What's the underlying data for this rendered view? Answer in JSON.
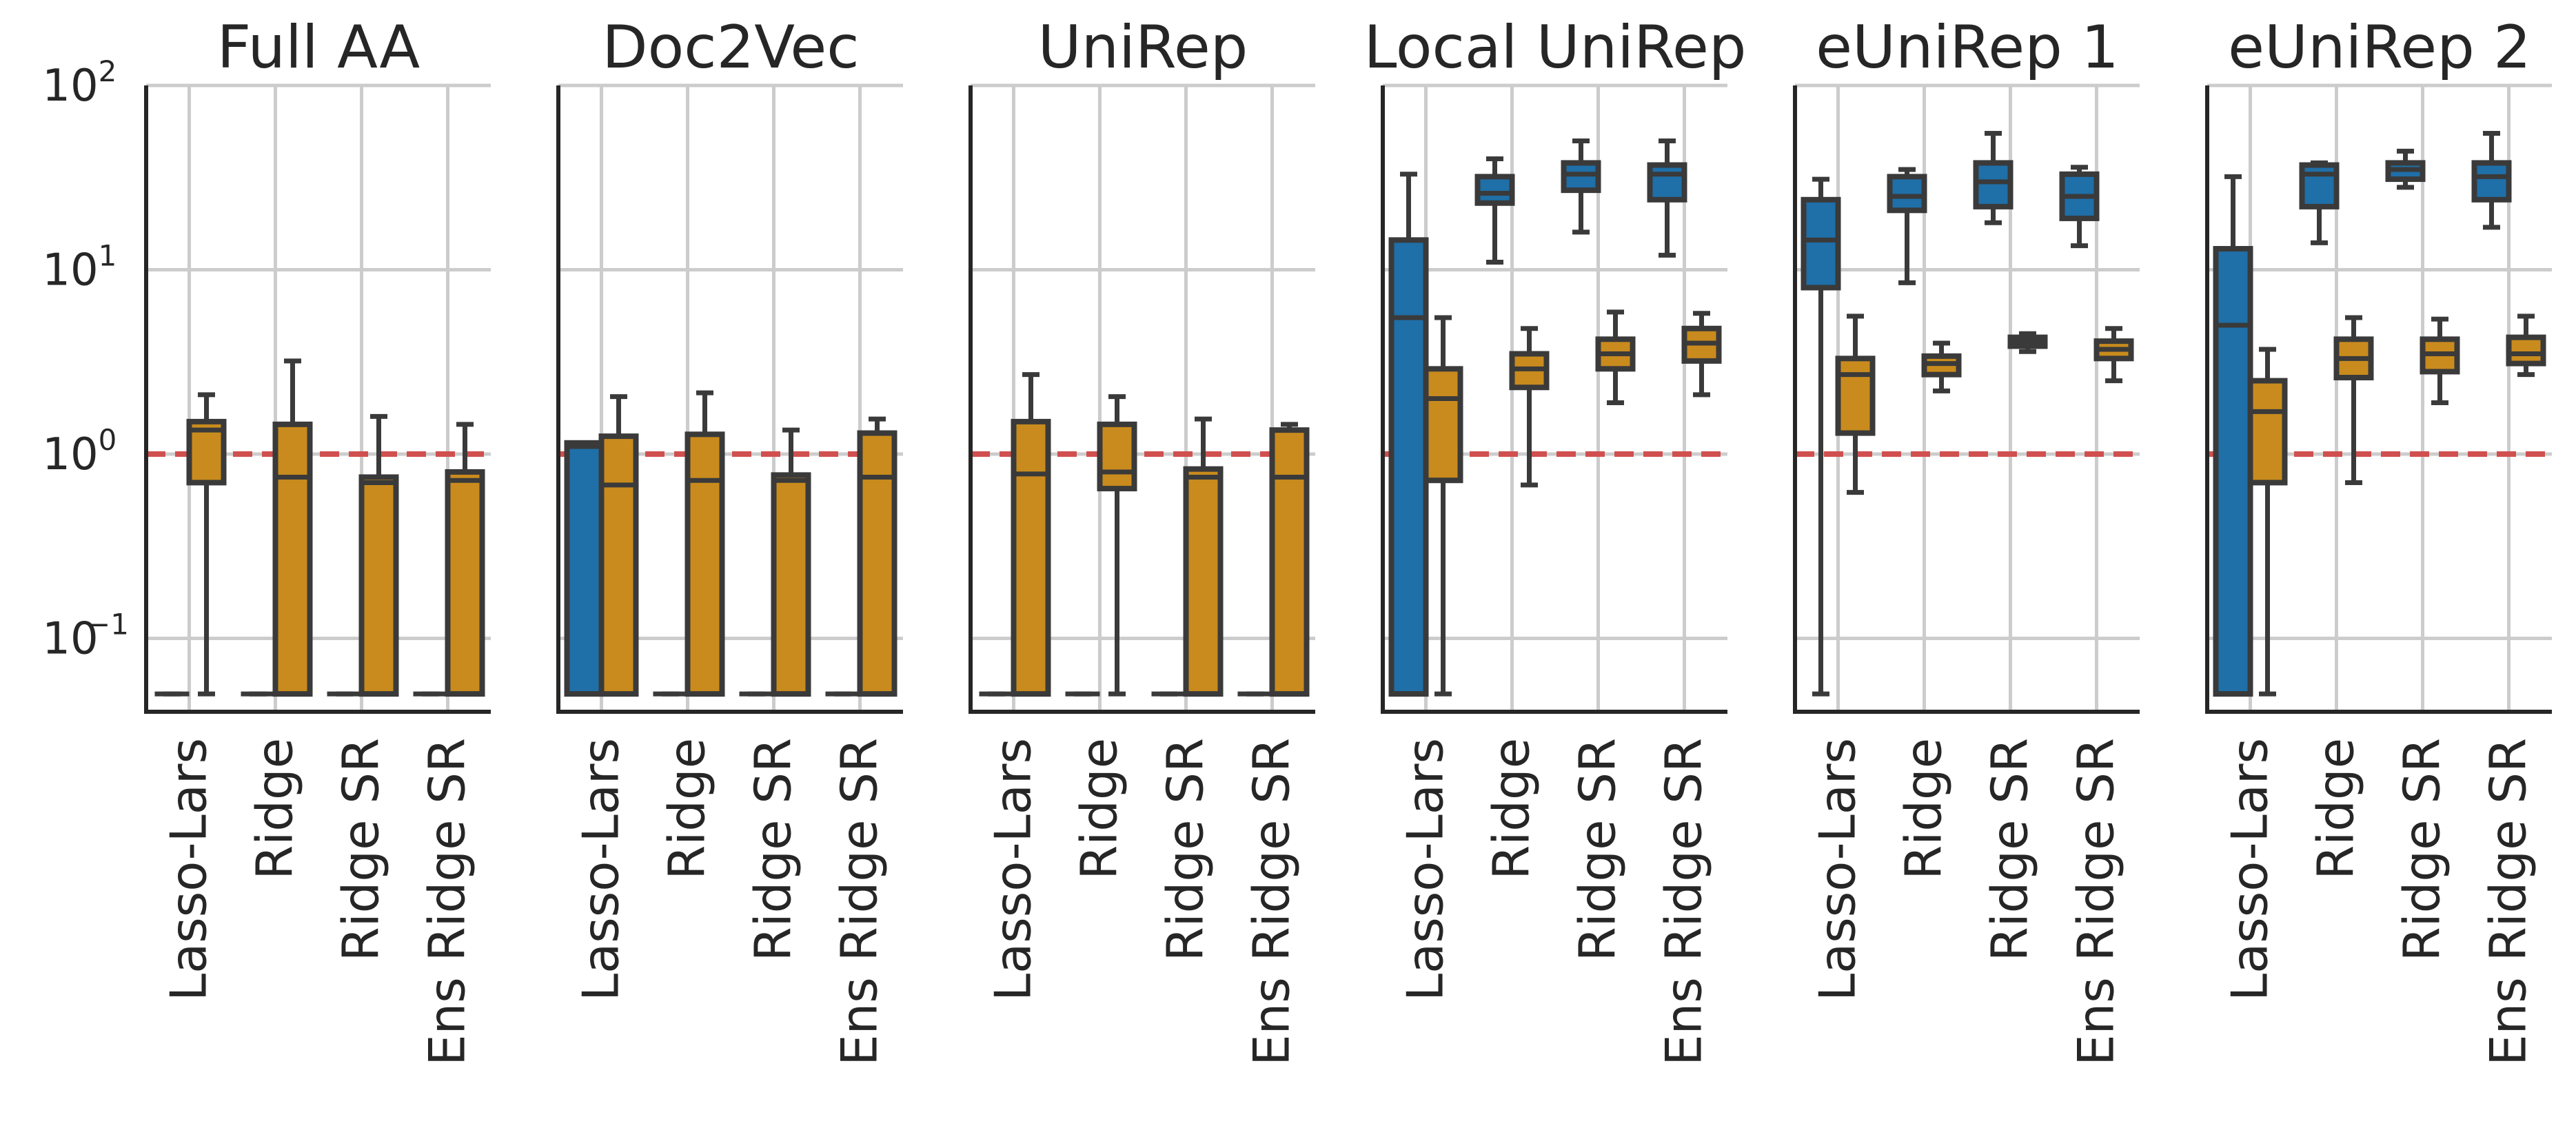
{
  "colors": {
    "set_a": "#1f6fa8",
    "set_b": "#c98b1d",
    "reference": "#d0504f"
  },
  "chart_data": {
    "type": "box",
    "yscale": "log",
    "ylim": [
      0.04,
      100
    ],
    "yticks": [
      0.1,
      1,
      10,
      100
    ],
    "ytick_labels": [
      {
        "base": "10",
        "exp": "−1"
      },
      {
        "base": "10",
        "exp": "0"
      },
      {
        "base": "10",
        "exp": "1"
      },
      {
        "base": "10",
        "exp": "2"
      }
    ],
    "reference_line": 1,
    "grid": true,
    "categories": [
      "Lasso-Lars",
      "Ridge",
      "Ridge SR",
      "Ens Ridge SR"
    ],
    "panels": [
      {
        "title": "Full AA",
        "boxes": [
          {
            "category": "Lasso-Lars",
            "series": "a",
            "min": 0.05,
            "q1": 0.05,
            "median": 0.05,
            "q3": 0.05,
            "max": 0.05
          },
          {
            "category": "Lasso-Lars",
            "series": "b",
            "min": 0.05,
            "q1": 0.7,
            "median": 1.35,
            "q3": 1.5,
            "max": 2.1
          },
          {
            "category": "Ridge",
            "series": "a",
            "min": 0.05,
            "q1": 0.05,
            "median": 0.05,
            "q3": 0.05,
            "max": 0.05
          },
          {
            "category": "Ridge",
            "series": "b",
            "min": 0.05,
            "q1": 0.05,
            "median": 0.75,
            "q3": 1.45,
            "max": 3.2
          },
          {
            "category": "Ridge SR",
            "series": "a",
            "min": 0.05,
            "q1": 0.05,
            "median": 0.05,
            "q3": 0.05,
            "max": 0.05
          },
          {
            "category": "Ridge SR",
            "series": "b",
            "min": 0.05,
            "q1": 0.05,
            "median": 0.7,
            "q3": 0.75,
            "max": 1.6
          },
          {
            "category": "Ens Ridge SR",
            "series": "a",
            "min": 0.05,
            "q1": 0.05,
            "median": 0.05,
            "q3": 0.05,
            "max": 0.05
          },
          {
            "category": "Ens Ridge SR",
            "series": "b",
            "min": 0.05,
            "q1": 0.05,
            "median": 0.72,
            "q3": 0.8,
            "max": 1.45
          }
        ]
      },
      {
        "title": "Doc2Vec",
        "boxes": [
          {
            "category": "Lasso-Lars",
            "series": "a",
            "min": 0.05,
            "q1": 0.05,
            "median": 1.1,
            "q3": 1.15,
            "max": 1.15
          },
          {
            "category": "Lasso-Lars",
            "series": "b",
            "min": 0.05,
            "q1": 0.05,
            "median": 0.68,
            "q3": 1.25,
            "max": 2.05
          },
          {
            "category": "Ridge",
            "series": "a",
            "min": 0.05,
            "q1": 0.05,
            "median": 0.05,
            "q3": 0.05,
            "max": 0.05
          },
          {
            "category": "Ridge",
            "series": "b",
            "min": 0.05,
            "q1": 0.05,
            "median": 0.72,
            "q3": 1.28,
            "max": 2.15
          },
          {
            "category": "Ridge SR",
            "series": "a",
            "min": 0.05,
            "q1": 0.05,
            "median": 0.05,
            "q3": 0.05,
            "max": 0.05
          },
          {
            "category": "Ridge SR",
            "series": "b",
            "min": 0.05,
            "q1": 0.05,
            "median": 0.72,
            "q3": 0.77,
            "max": 1.35
          },
          {
            "category": "Ens Ridge SR",
            "series": "a",
            "min": 0.05,
            "q1": 0.05,
            "median": 0.05,
            "q3": 0.05,
            "max": 0.05
          },
          {
            "category": "Ens Ridge SR",
            "series": "b",
            "min": 0.05,
            "q1": 0.05,
            "median": 0.75,
            "q3": 1.3,
            "max": 1.55
          }
        ]
      },
      {
        "title": "UniRep",
        "boxes": [
          {
            "category": "Lasso-Lars",
            "series": "a",
            "min": 0.05,
            "q1": 0.05,
            "median": 0.05,
            "q3": 0.05,
            "max": 0.05
          },
          {
            "category": "Lasso-Lars",
            "series": "b",
            "min": 0.05,
            "q1": 0.05,
            "median": 0.78,
            "q3": 1.5,
            "max": 2.7
          },
          {
            "category": "Ridge",
            "series": "a",
            "min": 0.05,
            "q1": 0.05,
            "median": 0.05,
            "q3": 0.05,
            "max": 0.05
          },
          {
            "category": "Ridge",
            "series": "b",
            "min": 0.05,
            "q1": 0.65,
            "median": 0.8,
            "q3": 1.45,
            "max": 2.05
          },
          {
            "category": "Ridge SR",
            "series": "a",
            "min": 0.05,
            "q1": 0.05,
            "median": 0.05,
            "q3": 0.05,
            "max": 0.05
          },
          {
            "category": "Ridge SR",
            "series": "b",
            "min": 0.05,
            "q1": 0.05,
            "median": 0.75,
            "q3": 0.83,
            "max": 1.55
          },
          {
            "category": "Ens Ridge SR",
            "series": "a",
            "min": 0.05,
            "q1": 0.05,
            "median": 0.05,
            "q3": 0.05,
            "max": 0.05
          },
          {
            "category": "Ens Ridge SR",
            "series": "b",
            "min": 0.05,
            "q1": 0.05,
            "median": 0.75,
            "q3": 1.35,
            "max": 1.45
          }
        ]
      },
      {
        "title": "Local UniRep",
        "boxes": [
          {
            "category": "Lasso-Lars",
            "series": "a",
            "min": 0.05,
            "q1": 0.05,
            "median": 5.5,
            "q3": 14.5,
            "max": 33
          },
          {
            "category": "Lasso-Lars",
            "series": "b",
            "min": 0.05,
            "q1": 0.72,
            "median": 2.0,
            "q3": 2.9,
            "max": 5.5
          },
          {
            "category": "Ridge",
            "series": "a",
            "min": 11,
            "q1": 23,
            "median": 26,
            "q3": 32,
            "max": 40
          },
          {
            "category": "Ridge",
            "series": "b",
            "min": 0.68,
            "q1": 2.3,
            "median": 2.9,
            "q3": 3.5,
            "max": 4.8
          },
          {
            "category": "Ridge SR",
            "series": "a",
            "min": 16,
            "q1": 27,
            "median": 33,
            "q3": 38,
            "max": 50
          },
          {
            "category": "Ridge SR",
            "series": "b",
            "min": 1.9,
            "q1": 2.9,
            "median": 3.5,
            "q3": 4.2,
            "max": 5.9
          },
          {
            "category": "Ens Ridge SR",
            "series": "a",
            "min": 12,
            "q1": 24,
            "median": 33,
            "q3": 37,
            "max": 50
          },
          {
            "category": "Ens Ridge SR",
            "series": "b",
            "min": 2.1,
            "q1": 3.2,
            "median": 4.0,
            "q3": 4.8,
            "max": 5.8
          }
        ]
      },
      {
        "title": "eUniRep 1",
        "boxes": [
          {
            "category": "Lasso-Lars",
            "series": "a",
            "min": 0.05,
            "q1": 8,
            "median": 14.5,
            "q3": 24,
            "max": 31
          },
          {
            "category": "Lasso-Lars",
            "series": "b",
            "min": 0.62,
            "q1": 1.3,
            "median": 2.7,
            "q3": 3.3,
            "max": 5.6
          },
          {
            "category": "Ridge",
            "series": "a",
            "min": 8.5,
            "q1": 21,
            "median": 25,
            "q3": 32,
            "max": 35
          },
          {
            "category": "Ridge",
            "series": "b",
            "min": 2.2,
            "q1": 2.7,
            "median": 3.1,
            "q3": 3.4,
            "max": 4.0
          },
          {
            "category": "Ridge SR",
            "series": "a",
            "min": 18,
            "q1": 22,
            "median": 30,
            "q3": 38,
            "max": 55
          },
          {
            "category": "Ridge SR",
            "series": "b",
            "min": 3.6,
            "q1": 3.85,
            "median": 4.05,
            "q3": 4.3,
            "max": 4.5
          },
          {
            "category": "Ens Ridge SR",
            "series": "a",
            "min": 13.5,
            "q1": 19,
            "median": 25,
            "q3": 33,
            "max": 36
          },
          {
            "category": "Ens Ridge SR",
            "series": "b",
            "min": 2.5,
            "q1": 3.3,
            "median": 3.7,
            "q3": 4.1,
            "max": 4.8
          }
        ]
      },
      {
        "title": "eUniRep 2",
        "boxes": [
          {
            "category": "Lasso-Lars",
            "series": "a",
            "min": 0.05,
            "q1": 0.05,
            "median": 5.0,
            "q3": 13,
            "max": 32
          },
          {
            "category": "Lasso-Lars",
            "series": "b",
            "min": 0.05,
            "q1": 0.7,
            "median": 1.7,
            "q3": 2.5,
            "max": 3.7
          },
          {
            "category": "Ridge",
            "series": "a",
            "min": 14,
            "q1": 22,
            "median": 33,
            "q3": 37,
            "max": 38
          },
          {
            "category": "Ridge",
            "series": "b",
            "min": 0.7,
            "q1": 2.6,
            "median": 3.3,
            "q3": 4.2,
            "max": 5.5
          },
          {
            "category": "Ridge SR",
            "series": "a",
            "min": 28,
            "q1": 31,
            "median": 35,
            "q3": 38,
            "max": 44
          },
          {
            "category": "Ridge SR",
            "series": "b",
            "min": 1.9,
            "q1": 2.8,
            "median": 3.5,
            "q3": 4.2,
            "max": 5.4
          },
          {
            "category": "Ens Ridge SR",
            "series": "a",
            "min": 17,
            "q1": 24,
            "median": 32,
            "q3": 38,
            "max": 55
          },
          {
            "category": "Ens Ridge SR",
            "series": "b",
            "min": 2.7,
            "q1": 3.1,
            "median": 3.5,
            "q3": 4.3,
            "max": 5.6
          }
        ]
      }
    ]
  }
}
